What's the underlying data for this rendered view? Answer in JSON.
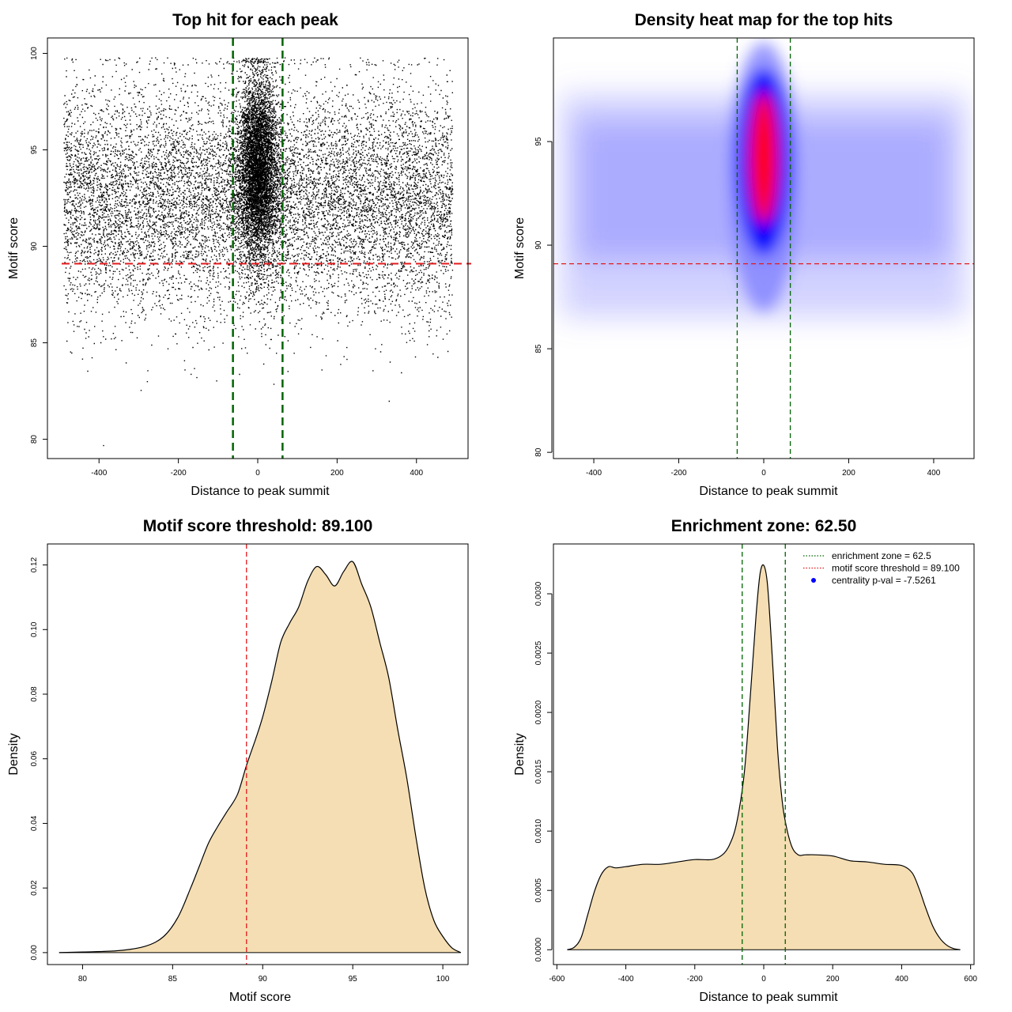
{
  "chart_data": [
    {
      "type": "scatter",
      "title": "Top hit for each peak",
      "xlabel": "Distance to peak summit",
      "ylabel": "Motif score",
      "xlim": [
        -530,
        530
      ],
      "ylim": [
        79,
        100.8
      ],
      "xticks": [
        -400,
        -200,
        0,
        200,
        400
      ],
      "yticks": [
        80,
        85,
        90,
        95,
        100
      ],
      "xtick_labels": [
        "-400",
        "-200",
        "0",
        "200",
        "400"
      ],
      "ytick_labels": [
        "80",
        "85",
        "90",
        "95",
        "100"
      ],
      "vlines": [
        -62.5,
        62.5
      ],
      "hline": 89.1,
      "point_color": "#000000",
      "vline_color": "#006400",
      "hline_color": "#e31a1c",
      "distribution": {
        "x_range": [
          -490,
          490
        ],
        "y_range": [
          79.7,
          99.8
        ],
        "central_cluster_x_sd": 25,
        "central_cluster_y_mean": 94,
        "background_y_mean": 92.5,
        "outliers": [
          {
            "x": -390,
            "y": 79.7
          },
          {
            "x": 330,
            "y": 82
          }
        ]
      }
    },
    {
      "type": "heatmap",
      "title": "Density heat map for the top hits",
      "xlabel": "Distance to peak summit",
      "ylabel": "Motif score",
      "xlim": [
        -495,
        495
      ],
      "ylim": [
        79.7,
        100
      ],
      "xticks": [
        -400,
        -200,
        0,
        200,
        400
      ],
      "yticks": [
        80,
        85,
        90,
        95
      ],
      "xtick_labels": [
        "-400",
        "-200",
        "0",
        "200",
        "400"
      ],
      "ytick_labels": [
        "80",
        "85",
        "90",
        "95"
      ],
      "vlines": [
        -62.5,
        62.5
      ],
      "hline": 89.1,
      "colors": [
        "#ffffff",
        "#7f7fff",
        "#0000ff",
        "#ff0000"
      ],
      "hotspot": {
        "x": 0,
        "y": 95.2
      },
      "secondary_hotspot": {
        "x": 0,
        "y": 93
      }
    },
    {
      "type": "area",
      "title": "Motif score threshold: 89.100",
      "xlabel": "Motif score",
      "ylabel": "Density",
      "xlim": [
        78.05,
        101.4
      ],
      "ylim": [
        -0.0037,
        0.1265
      ],
      "xticks": [
        80,
        85,
        90,
        95,
        100
      ],
      "yticks": [
        0,
        0.02,
        0.04,
        0.06,
        0.08,
        0.1,
        0.12
      ],
      "xtick_labels": [
        "80",
        "85",
        "90",
        "95",
        "100"
      ],
      "ytick_labels": [
        "0.00",
        "0.02",
        "0.04",
        "0.06",
        "0.08",
        "0.10",
        "0.12"
      ],
      "vline": 89.1,
      "fill": "#f5deb3",
      "x": [
        78.7,
        80,
        82,
        83.5,
        84.5,
        85.3,
        86,
        86.5,
        87,
        87.5,
        88,
        88.6,
        89.1,
        89.6,
        90,
        90.5,
        91,
        91.5,
        92,
        92.5,
        93,
        93.5,
        94,
        94.5,
        95,
        95.5,
        96,
        96.5,
        97,
        97.5,
        98,
        98.5,
        99,
        99.5,
        100,
        100.5,
        101
      ],
      "y": [
        0,
        0.0002,
        0.0006,
        0.002,
        0.005,
        0.011,
        0.02,
        0.027,
        0.034,
        0.039,
        0.0435,
        0.049,
        0.058,
        0.066,
        0.073,
        0.084,
        0.096,
        0.102,
        0.107,
        0.115,
        0.1195,
        0.117,
        0.1135,
        0.118,
        0.121,
        0.114,
        0.107,
        0.096,
        0.085,
        0.069,
        0.054,
        0.036,
        0.02,
        0.01,
        0.005,
        0.0015,
        0
      ]
    },
    {
      "type": "area",
      "title": "Enrichment zone: 62.50",
      "xlabel": "Distance to peak summit",
      "ylabel": "Density",
      "xlim": [
        -610,
        610
      ],
      "ylim": [
        -0.000125,
        0.00342
      ],
      "xticks": [
        -600,
        -400,
        -200,
        0,
        200,
        400,
        600
      ],
      "yticks": [
        0,
        0.0005,
        0.001,
        0.0015,
        0.002,
        0.0025,
        0.003
      ],
      "xtick_labels": [
        "-600",
        "-400",
        "-200",
        "0",
        "200",
        "400",
        "600"
      ],
      "ytick_labels": [
        "0.0000",
        "0.0005",
        "0.0010",
        "0.0015",
        "0.0020",
        "0.0025",
        "0.0030"
      ],
      "vlines": [
        -62.5,
        62.5
      ],
      "fill": "#f5deb3",
      "x": [
        -570,
        -550,
        -530,
        -510,
        -490,
        -470,
        -450,
        -430,
        -400,
        -350,
        -300,
        -250,
        -200,
        -150,
        -120,
        -100,
        -80,
        -60,
        -50,
        -40,
        -30,
        -20,
        -10,
        0,
        10,
        20,
        30,
        40,
        50,
        60,
        80,
        100,
        120,
        150,
        200,
        250,
        300,
        350,
        400,
        430,
        450,
        470,
        490,
        510,
        530,
        550,
        570
      ],
      "y": [
        0,
        2e-05,
        0.0001,
        0.0003,
        0.0005,
        0.00064,
        0.0007,
        0.00069,
        0.0007,
        0.00072,
        0.00072,
        0.00074,
        0.00076,
        0.00076,
        0.0008,
        0.00088,
        0.00105,
        0.0014,
        0.0017,
        0.0021,
        0.0025,
        0.0029,
        0.00318,
        0.00324,
        0.0031,
        0.0027,
        0.0022,
        0.0017,
        0.00135,
        0.00112,
        0.00088,
        0.0008,
        0.0008,
        0.0008,
        0.00079,
        0.00075,
        0.00074,
        0.00072,
        0.00071,
        0.00065,
        0.00052,
        0.00035,
        0.0002,
        0.0001,
        4e-05,
        1e-05,
        0
      ],
      "legend": [
        {
          "label": "enrichment zone = 62.5",
          "color": "#006400",
          "style": "dotted-line"
        },
        {
          "label": "motif score threshold = 89.100",
          "color": "#e31a1c",
          "style": "dotted-line"
        },
        {
          "label": "centrality p-val = -7.5261",
          "color": "#0000ff",
          "style": "point"
        }
      ],
      "legend_position": "top-right"
    }
  ]
}
